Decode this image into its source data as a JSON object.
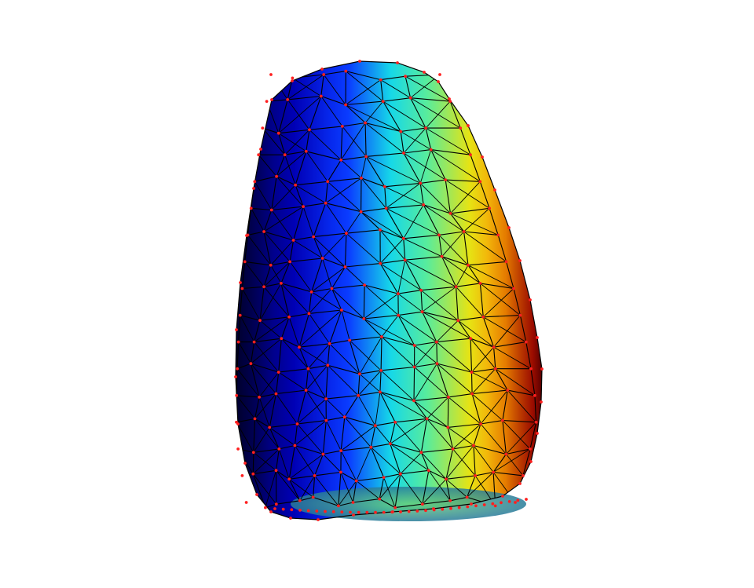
{
  "figure": {
    "type": "3d-surface-mesh",
    "shading": "interpolated",
    "colormap": "jet",
    "colormap_stops": [
      "#00008f",
      "#0000ff",
      "#00ffff",
      "#ffff00",
      "#ff0000",
      "#800000"
    ],
    "edge_color": "#000000",
    "vertex_marker_color": "#ff2020",
    "background_color": "#ffffff",
    "axes_visible": false
  }
}
